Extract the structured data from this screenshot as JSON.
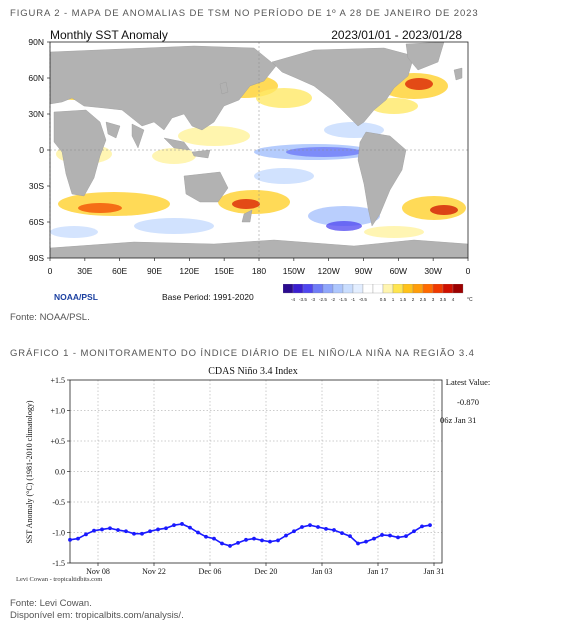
{
  "figure_caption": "FIGURA 2 - MAPA DE ANOMALIAS DE TSM NO PERÍODO DE 1º A 28 DE JANEIRO DE 2023",
  "map": {
    "title": "Monthly SST Anomaly",
    "period": "2023/01/01 - 2023/01/28",
    "lat_labels": [
      "90N",
      "60N",
      "30N",
      "0",
      "30S",
      "60S",
      "90S"
    ],
    "lon_labels": [
      "0",
      "30E",
      "60E",
      "90E",
      "120E",
      "150E",
      "180",
      "150W",
      "120W",
      "90W",
      "60W",
      "30W",
      "0"
    ],
    "credit": "NOAA/PSL",
    "base_period": "Base Period: 1991-2020",
    "colorbar_labels": [
      "-4",
      "-3.5",
      "-3",
      "-2.5",
      "-2",
      "-1.5",
      "-1",
      "-0.5",
      "0.5",
      "1",
      "1.5",
      "2",
      "2.5",
      "3",
      "3.5",
      "4"
    ],
    "colorbar_unit": "°C",
    "colorbar_colors": [
      "#2b0b8f",
      "#3a1fd0",
      "#4f46f0",
      "#6f7cf7",
      "#8fa6fb",
      "#adc6fd",
      "#c9ddfe",
      "#e3eeff",
      "#ffffff",
      "#ffffff",
      "#fff5b0",
      "#ffe54f",
      "#ffc21a",
      "#ff9d0a",
      "#ff6a00",
      "#f03a00",
      "#cf1000",
      "#9c0000"
    ],
    "colors": {
      "land": "#b2b2b2",
      "ocean": "#ffffff",
      "grid": "#8a8a8a"
    }
  },
  "map_source": "Fonte: NOAA/PSL.",
  "chart_caption": "GRÁFICO 1 - MONITORAMENTO DO ÍNDICE DIÁRIO DE EL NIÑO/LA NIÑA NA REGIÃO 3.4",
  "chart_data": {
    "type": "line",
    "title": "CDAS Niño 3.4 Index",
    "ylabel": "SST Anomaly (°C) (1981-2010 climatology)",
    "xlabel": "",
    "ylim": [
      -1.5,
      1.5
    ],
    "yticks": [
      "+1.5",
      "+1.0",
      "+0.5",
      "0.0",
      "-0.5",
      "-1.0",
      "-1.5"
    ],
    "ytick_values": [
      1.5,
      1.0,
      0.5,
      0.0,
      -0.5,
      -1.0,
      -1.5
    ],
    "xticks": [
      "Nov 08",
      "Nov 22",
      "Dec 06",
      "Dec 20",
      "Jan 03",
      "Jan 17",
      "Jan 31"
    ],
    "xtick_positions": [
      7,
      21,
      35,
      49,
      63,
      77,
      91
    ],
    "xlim": [
      0,
      93
    ],
    "grid": true,
    "series": [
      {
        "color": "#1a1aff",
        "x": [
          0,
          2,
          4,
          6,
          8,
          10,
          12,
          14,
          16,
          18,
          20,
          22,
          24,
          26,
          28,
          30,
          32,
          34,
          36,
          38,
          40,
          42,
          44,
          46,
          48,
          50,
          52,
          54,
          56,
          58,
          60,
          62,
          64,
          66,
          68,
          70,
          72,
          74,
          76,
          78,
          80,
          82,
          84,
          86,
          88,
          90
        ],
        "values": [
          -1.12,
          -1.1,
          -1.03,
          -0.97,
          -0.95,
          -0.93,
          -0.96,
          -0.98,
          -1.02,
          -1.02,
          -0.98,
          -0.95,
          -0.93,
          -0.88,
          -0.86,
          -0.92,
          -1.0,
          -1.07,
          -1.1,
          -1.18,
          -1.22,
          -1.17,
          -1.12,
          -1.1,
          -1.13,
          -1.15,
          -1.13,
          -1.05,
          -0.98,
          -0.91,
          -0.88,
          -0.91,
          -0.94,
          -0.96,
          -1.01,
          -1.06,
          -1.18,
          -1.15,
          -1.1,
          -1.04,
          -1.05,
          -1.08,
          -1.06,
          -0.98,
          -0.9,
          -0.88
        ]
      }
    ],
    "latest_label": "Latest Value:",
    "latest_value": "-0.870",
    "latest_date": "06z Jan 31",
    "credit": "Levi Cowan - tropicaltidbits.com"
  },
  "chart_source_1": "Fonte: Levi Cowan.",
  "chart_source_2": "Disponível em: tropicalbits.com/analysis/."
}
